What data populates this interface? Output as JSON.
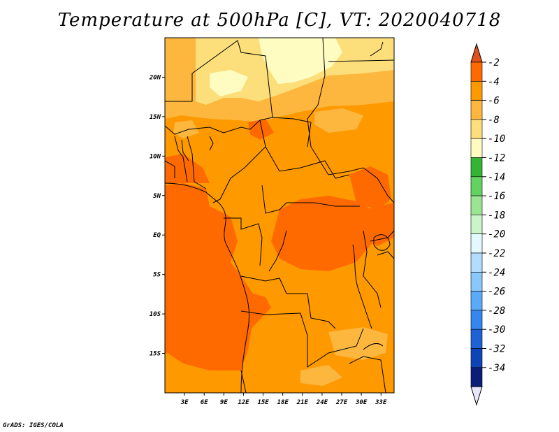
{
  "title": "Temperature at 500hPa [C], VT: 2020040718",
  "credit": "GrADS: IGES/COLA",
  "map": {
    "lat_ticks": [
      "20N",
      "15N",
      "10N",
      "5N",
      "EQ",
      "5S",
      "10S",
      "15S"
    ],
    "lon_ticks": [
      "3E",
      "6E",
      "9E",
      "12E",
      "15E",
      "18E",
      "21E",
      "24E",
      "27E",
      "30E",
      "33E"
    ],
    "lon_range": [
      0,
      35
    ],
    "lat_range": [
      -20,
      25
    ]
  },
  "colorbar": {
    "labels": [
      "-2",
      "-4",
      "-6",
      "-8",
      "-10",
      "-12",
      "-14",
      "-16",
      "-18",
      "-20",
      "-22",
      "-24",
      "-26",
      "-28",
      "-30",
      "-32",
      "-34"
    ],
    "colors": [
      "#e0511b",
      "#ff6a00",
      "#ff9900",
      "#fdb73f",
      "#fcdf7a",
      "#fefcc1",
      "#34b433",
      "#64d261",
      "#9ae492",
      "#cbf5c8",
      "#e3f9ff",
      "#b3dcff",
      "#89c8fb",
      "#5aaaf9",
      "#3387ef",
      "#1e62d6",
      "#0d45b8",
      "#0b1d78",
      "#e8e6fa"
    ]
  },
  "palette": {
    "light": "#fefcc1",
    "pale": "#fcdf7a",
    "yellow_orange": "#fdb73f",
    "orange": "#ff9900",
    "deep_orange": "#ff6a00"
  }
}
